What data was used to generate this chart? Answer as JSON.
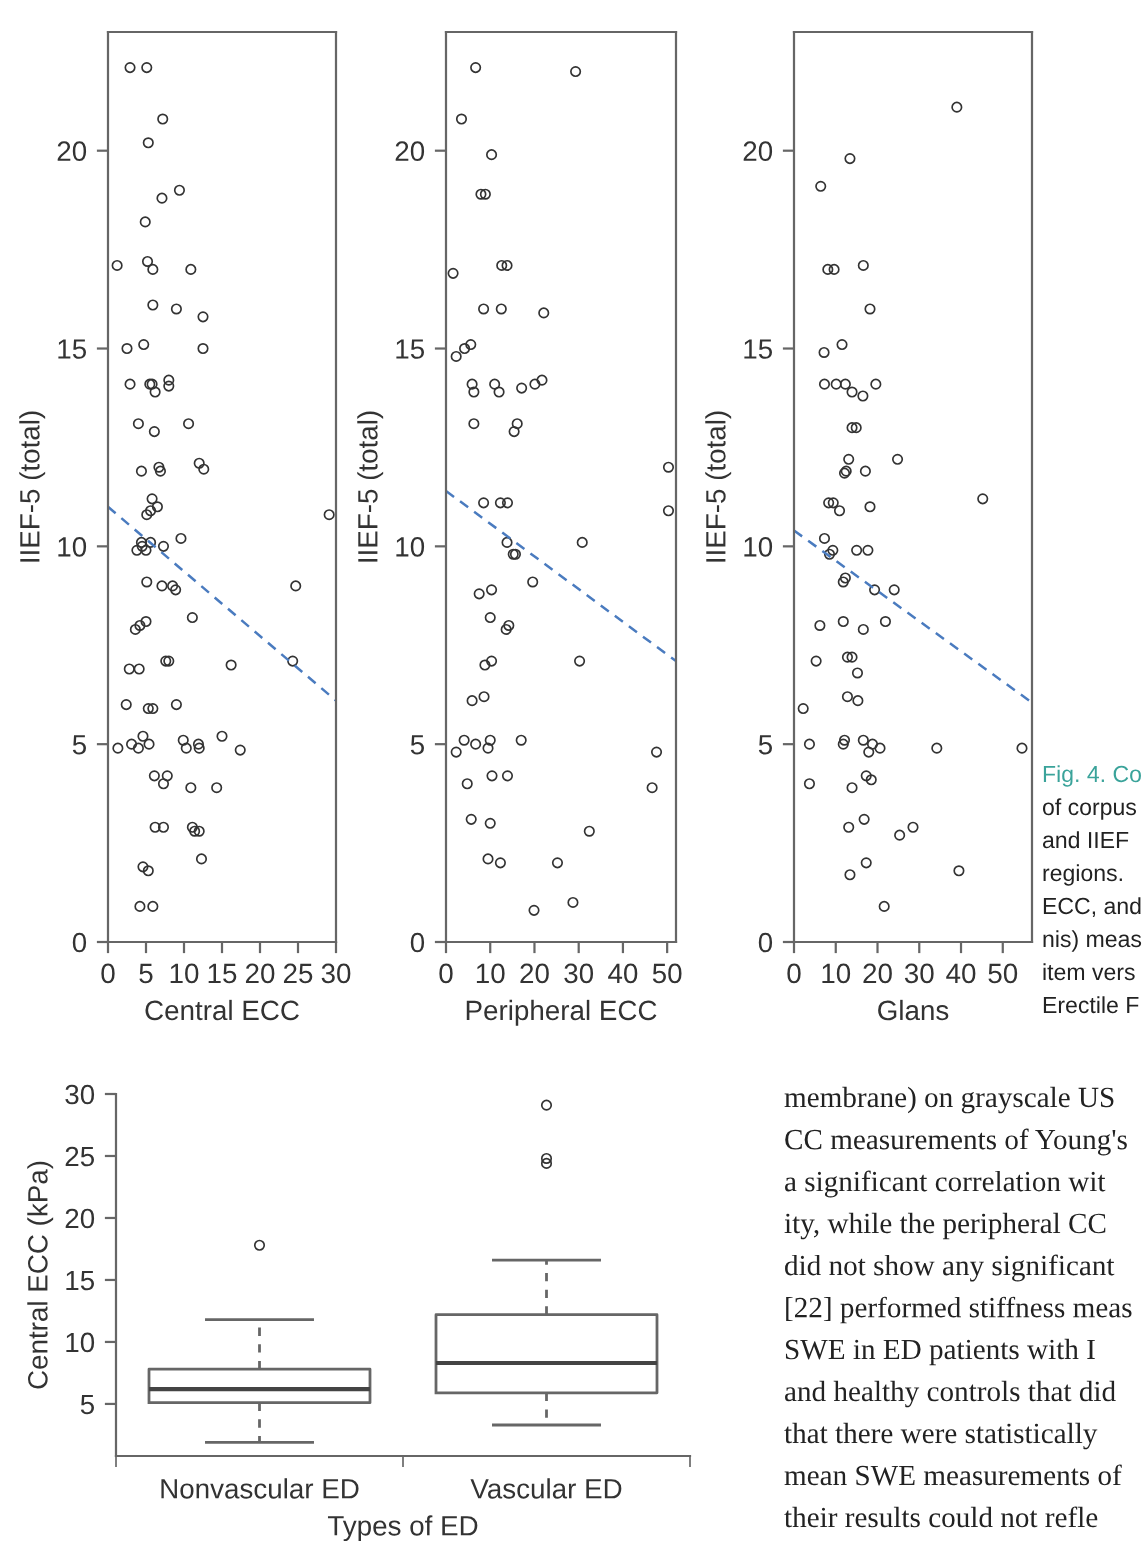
{
  "chart_data": [
    {
      "type": "scatter",
      "xlabel": "Central ECC",
      "ylabel": "IIEF-5 (total)",
      "xlim": [
        0,
        30
      ],
      "xticks": [
        0,
        5,
        10,
        15,
        20,
        25,
        30
      ],
      "ylim": [
        0,
        23
      ],
      "yticks": [
        0,
        5,
        10,
        15,
        20
      ],
      "grid": false,
      "series": [
        {
          "color": "#333333",
          "marker": "circle",
          "x": [
            2.9,
            5.1,
            7.2,
            5.3,
            9.4,
            7.1,
            4.9,
            1.2,
            5.2,
            5.9,
            10.9,
            5.9,
            9.0,
            12.5,
            2.5,
            4.7,
            12.5,
            2.9,
            5.5,
            5.8,
            6.2,
            8.0,
            8.0,
            4.0,
            10.6,
            6.1,
            4.4,
            6.7,
            6.9,
            12.0,
            12.6,
            5.8,
            6.5,
            5.1,
            5.6,
            29.1,
            4.4,
            4.5,
            5.6,
            3.8,
            5.0,
            7.3,
            9.6,
            5.1,
            7.1,
            8.5,
            8.9,
            24.7,
            11.1,
            3.6,
            4.2,
            5.0,
            7.6,
            8.0,
            16.2,
            24.3,
            2.8,
            4.1,
            2.4,
            5.3,
            5.9,
            9.0,
            1.3,
            3.1,
            4.0,
            4.6,
            5.4,
            9.9,
            10.3,
            11.9,
            12.0,
            15.0,
            17.4,
            6.1,
            7.8,
            7.3,
            10.9,
            14.3,
            6.2,
            7.3,
            11.1,
            11.4,
            12.0,
            12.3,
            4.6,
            5.3,
            4.2,
            5.9
          ],
          "values": [
            22.1,
            22.1,
            20.8,
            20.2,
            19.0,
            18.8,
            18.2,
            17.1,
            17.2,
            17.0,
            17.0,
            16.1,
            16.0,
            15.8,
            15.0,
            15.1,
            15.0,
            14.1,
            14.1,
            14.1,
            13.9,
            14.2,
            14.05,
            13.1,
            13.1,
            12.9,
            11.9,
            12.0,
            11.9,
            12.1,
            11.95,
            11.2,
            11.0,
            10.8,
            10.9,
            10.8,
            10.1,
            10.0,
            10.1,
            9.9,
            9.9,
            10.0,
            10.2,
            9.1,
            9.0,
            9.0,
            8.9,
            9.0,
            8.2,
            7.9,
            8.0,
            8.1,
            7.1,
            7.1,
            7.0,
            7.1,
            6.9,
            6.9,
            6.0,
            5.9,
            5.9,
            6.0,
            4.9,
            5.0,
            4.9,
            5.2,
            5.0,
            5.1,
            4.9,
            5.0,
            4.9,
            5.2,
            4.85,
            4.2,
            4.2,
            4.0,
            3.9,
            3.9,
            2.9,
            2.9,
            2.9,
            2.8,
            2.8,
            2.1,
            1.9,
            1.8,
            0.9,
            0.9
          ]
        },
        {
          "type": "line",
          "color": "#4a7bbf",
          "line_style": "dashed",
          "marker": "none",
          "x": [
            0,
            30
          ],
          "values": [
            11.0,
            6.1
          ]
        }
      ]
    },
    {
      "type": "scatter",
      "xlabel": "Peripheral ECC",
      "ylabel": "IIEF-5 (total)",
      "xlim": [
        0,
        52
      ],
      "xticks": [
        0,
        10,
        20,
        30,
        40,
        50
      ],
      "ylim": [
        0,
        23
      ],
      "yticks": [
        0,
        5,
        10,
        15,
        20
      ],
      "grid": false,
      "series": [
        {
          "color": "#333333",
          "marker": "circle",
          "x": [
            6.7,
            29.3,
            3.5,
            10.3,
            7.9,
            8.9,
            1.6,
            12.6,
            13.8,
            8.5,
            12.5,
            22.1,
            2.3,
            4.2,
            5.6,
            5.9,
            6.3,
            11.0,
            12.0,
            17.1,
            20.1,
            21.7,
            6.3,
            16.1,
            15.4,
            50.3,
            8.5,
            12.3,
            13.9,
            50.3,
            13.8,
            30.8,
            15.2,
            15.7,
            19.6,
            7.5,
            10.3,
            10.0,
            13.6,
            14.2,
            8.8,
            10.3,
            30.2,
            5.9,
            8.6,
            2.3,
            4.1,
            6.7,
            9.5,
            10.0,
            17.0,
            47.6,
            4.8,
            10.4,
            13.9,
            46.6,
            5.7,
            10.0,
            9.5,
            12.3,
            32.4,
            25.2,
            28.7,
            19.9
          ],
          "values": [
            22.1,
            22.0,
            20.8,
            19.9,
            18.9,
            18.9,
            16.9,
            17.1,
            17.1,
            16.0,
            16.0,
            15.9,
            14.8,
            15.0,
            15.1,
            14.1,
            13.9,
            14.1,
            13.9,
            14.0,
            14.1,
            14.2,
            13.1,
            13.1,
            12.9,
            12.0,
            11.1,
            11.1,
            11.1,
            10.9,
            10.1,
            10.1,
            9.8,
            9.8,
            9.1,
            8.8,
            8.9,
            8.2,
            7.9,
            8.0,
            7.0,
            7.1,
            7.1,
            6.1,
            6.2,
            4.8,
            5.1,
            5.0,
            4.9,
            5.1,
            5.1,
            4.8,
            4.0,
            4.2,
            4.2,
            3.9,
            3.1,
            3.0,
            2.1,
            2.0,
            2.8,
            2.0,
            1.0,
            0.8
          ]
        },
        {
          "type": "line",
          "color": "#4a7bbf",
          "line_style": "dashed",
          "marker": "none",
          "x": [
            0,
            52
          ],
          "values": [
            11.4,
            7.1
          ]
        }
      ]
    },
    {
      "type": "scatter",
      "xlabel": "Glans",
      "ylabel": "IIEF-5 (total)",
      "xlim": [
        0,
        57
      ],
      "xticks": [
        0,
        10,
        20,
        30,
        40,
        50
      ],
      "ylim": [
        0,
        23
      ],
      "yticks": [
        0,
        5,
        10,
        15,
        20
      ],
      "grid": false,
      "annotations": [
        "Fig. 4. Co",
        "of corpus",
        "and IIEF",
        "regions.",
        "ECC, and",
        "nis) meas",
        "item vers",
        "Erectile F"
      ],
      "series": [
        {
          "color": "#333333",
          "marker": "circle",
          "x": [
            39.0,
            13.4,
            6.4,
            8.1,
            9.6,
            16.6,
            18.2,
            11.5,
            7.2,
            7.3,
            10.1,
            12.3,
            13.9,
            16.5,
            19.6,
            13.9,
            14.9,
            13.1,
            24.8,
            12.1,
            12.5,
            17.1,
            8.3,
            9.4,
            10.9,
            18.2,
            45.2,
            7.3,
            9.3,
            8.5,
            15.0,
            17.7,
            11.8,
            12.3,
            19.3,
            24.0,
            6.2,
            11.8,
            16.6,
            21.9,
            5.3,
            12.8,
            13.9,
            15.2,
            2.2,
            12.8,
            15.3,
            3.7,
            11.8,
            12.1,
            16.6,
            17.9,
            18.8,
            20.6,
            34.2,
            54.6,
            3.7,
            13.9,
            17.3,
            18.5,
            13.1,
            16.8,
            25.3,
            28.5,
            13.4,
            17.3,
            39.5,
            21.6
          ],
          "values": [
            21.1,
            19.8,
            19.1,
            17.0,
            17.0,
            17.1,
            16.0,
            15.1,
            14.9,
            14.1,
            14.1,
            14.1,
            13.9,
            13.8,
            14.1,
            13.0,
            13.0,
            12.2,
            12.2,
            11.85,
            11.9,
            11.9,
            11.1,
            11.1,
            10.9,
            11.0,
            11.2,
            10.2,
            9.9,
            9.8,
            9.9,
            9.9,
            9.1,
            9.2,
            8.9,
            8.9,
            8.0,
            8.1,
            7.9,
            8.1,
            7.1,
            7.2,
            7.2,
            6.8,
            5.9,
            6.2,
            6.1,
            5.0,
            5.0,
            5.1,
            5.1,
            4.8,
            5.0,
            4.9,
            4.9,
            4.9,
            4.0,
            3.9,
            4.2,
            4.1,
            2.9,
            3.1,
            2.7,
            2.9,
            1.7,
            2.0,
            1.8,
            0.9
          ]
        },
        {
          "type": "line",
          "color": "#4a7bbf",
          "line_style": "dashed",
          "marker": "none",
          "x": [
            0,
            57
          ],
          "values": [
            10.4,
            6.05
          ]
        }
      ]
    },
    {
      "type": "box",
      "xlabel": "Types of ED",
      "ylabel": "Central ECC (kPa)",
      "categories": [
        "Nonvascular ED",
        "Vascular ED"
      ],
      "ylim": [
        0.8,
        30
      ],
      "yticks": [
        5,
        10,
        15,
        20,
        25,
        30
      ],
      "grid": false,
      "boxes": [
        {
          "low": 1.9,
          "q1": 5.1,
          "median": 6.2,
          "q3": 7.8,
          "high": 11.8,
          "outliers": [
            17.8
          ]
        },
        {
          "low": 3.3,
          "q1": 5.9,
          "median": 8.3,
          "q3": 12.2,
          "high": 16.6,
          "outliers": [
            24.4,
            24.8,
            29.1
          ]
        }
      ],
      "annotations": [
        "membrane) on grayscale US",
        "CC measurements of Young's",
        "a significant correlation wit",
        "ity, while the peripheral CC",
        "did not show any significant",
        "[22] performed stiffness meas",
        "SWE in ED patients with I",
        "and healthy controls that did",
        "that there were statistically",
        "mean SWE measurements of",
        "their results could not refle"
      ]
    }
  ]
}
